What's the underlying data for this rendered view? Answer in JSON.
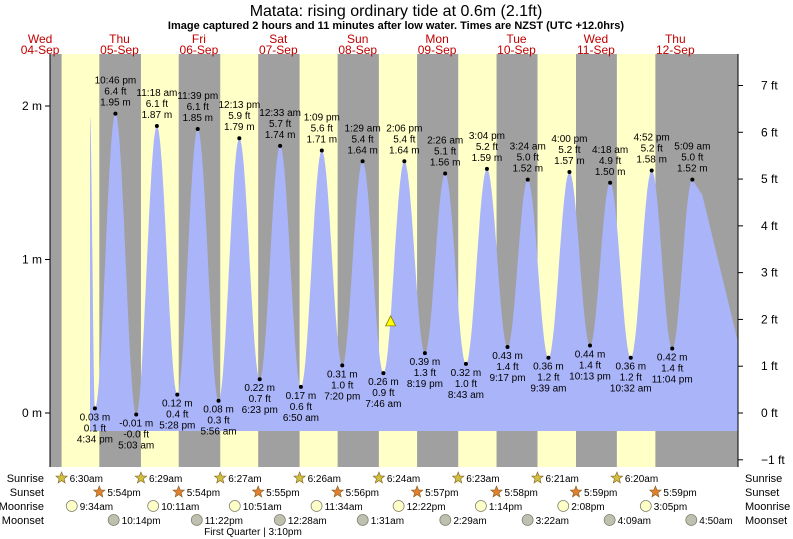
{
  "chart_data": {
    "type": "area",
    "title": "Matata: rising  ordinary tide at 0.6m (2.1ft)",
    "subtitle": "Image captured 2 hours and 11 minutes after low water. Times are NZST (UTC +12.0hrs)",
    "days": [
      {
        "dow": "Wed",
        "date": "04-Sep"
      },
      {
        "dow": "Thu",
        "date": "05-Sep"
      },
      {
        "dow": "Fri",
        "date": "06-Sep"
      },
      {
        "dow": "Sat",
        "date": "07-Sep"
      },
      {
        "dow": "Sun",
        "date": "08-Sep"
      },
      {
        "dow": "Mon",
        "date": "09-Sep"
      },
      {
        "dow": "Tue",
        "date": "10-Sep"
      },
      {
        "dow": "Wed",
        "date": "11-Sep"
      },
      {
        "dow": "Thu",
        "date": "12-Sep"
      }
    ],
    "left_axis": {
      "unit": "m",
      "ticks": [
        "0 m",
        "1 m",
        "2 m"
      ]
    },
    "right_axis": {
      "unit": "ft",
      "ticks": [
        "−1 ft",
        "0 ft",
        "1 ft",
        "2 ft",
        "3 ft",
        "4 ft",
        "5 ft",
        "6 ft",
        "7 ft"
      ]
    },
    "current": {
      "level_m": 0.6
    },
    "tides": [
      {
        "type": "low",
        "time": "4:34 pm",
        "m": "0.03 m",
        "ft": "0.1 ft"
      },
      {
        "type": "high",
        "time": "10:46 pm",
        "m": "1.95 m",
        "ft": "6.4 ft"
      },
      {
        "type": "low",
        "time": "5:03 am",
        "m": "-0.01 m",
        "ft": "-0.0 ft"
      },
      {
        "type": "high",
        "time": "11:18 am",
        "m": "1.87 m",
        "ft": "6.1 ft"
      },
      {
        "type": "low",
        "time": "5:28 pm",
        "m": "0.12 m",
        "ft": "0.4 ft"
      },
      {
        "type": "high",
        "time": "11:39 pm",
        "m": "1.85 m",
        "ft": "6.1 ft"
      },
      {
        "type": "low",
        "time": "5:56 am",
        "m": "0.08 m",
        "ft": "0.3 ft"
      },
      {
        "type": "high",
        "time": "12:13 pm",
        "m": "1.79 m",
        "ft": "5.9 ft"
      },
      {
        "type": "low",
        "time": "6:23 pm",
        "m": "0.22 m",
        "ft": "0.7 ft"
      },
      {
        "type": "high",
        "time": "12:33 am",
        "m": "1.74 m",
        "ft": "5.7 ft"
      },
      {
        "type": "low",
        "time": "6:50 am",
        "m": "0.17 m",
        "ft": "0.6 ft"
      },
      {
        "type": "high",
        "time": "1:09 pm",
        "m": "1.71 m",
        "ft": "5.6 ft"
      },
      {
        "type": "low",
        "time": "7:20 pm",
        "m": "0.31 m",
        "ft": "1.0 ft"
      },
      {
        "type": "high",
        "time": "1:29 am",
        "m": "1.64 m",
        "ft": "5.4 ft"
      },
      {
        "type": "low",
        "time": "7:46 am",
        "m": "0.26 m",
        "ft": "0.9 ft"
      },
      {
        "type": "high",
        "time": "2:06 pm",
        "m": "1.64 m",
        "ft": "5.4 ft"
      },
      {
        "type": "low",
        "time": "8:19 pm",
        "m": "0.39 m",
        "ft": "1.3 ft"
      },
      {
        "type": "high",
        "time": "2:26 am",
        "m": "1.56 m",
        "ft": "5.1 ft"
      },
      {
        "type": "low",
        "time": "8:43 am",
        "m": "0.32 m",
        "ft": "1.0 ft"
      },
      {
        "type": "high",
        "time": "3:04 pm",
        "m": "1.59 m",
        "ft": "5.2 ft"
      },
      {
        "type": "low",
        "time": "9:17 pm",
        "m": "0.43 m",
        "ft": "1.4 ft"
      },
      {
        "type": "high",
        "time": "3:24 am",
        "m": "1.52 m",
        "ft": "5.0 ft"
      },
      {
        "type": "low",
        "time": "9:39 am",
        "m": "0.36 m",
        "ft": "1.2 ft"
      },
      {
        "type": "high",
        "time": "4:00 pm",
        "m": "1.57 m",
        "ft": "5.2 ft"
      },
      {
        "type": "low",
        "time": "10:13 pm",
        "m": "0.44 m",
        "ft": "1.4 ft"
      },
      {
        "type": "high",
        "time": "4:18 am",
        "m": "1.50 m",
        "ft": "4.9 ft"
      },
      {
        "type": "low",
        "time": "10:32 am",
        "m": "0.36 m",
        "ft": "1.2 ft"
      },
      {
        "type": "high",
        "time": "4:52 pm",
        "m": "1.58 m",
        "ft": "5.2 ft"
      },
      {
        "type": "low",
        "time": "11:04 pm",
        "m": "0.42 m",
        "ft": "1.4 ft"
      },
      {
        "type": "high",
        "time": "5:09 am",
        "m": "1.52 m",
        "ft": "5.0 ft"
      }
    ],
    "rows": {
      "sunrise": {
        "label": "Sunrise",
        "times": [
          "6:30am",
          "6:29am",
          "6:27am",
          "6:26am",
          "6:24am",
          "6:23am",
          "6:21am",
          "6:20am"
        ]
      },
      "sunset": {
        "label": "Sunset",
        "times": [
          "5:54pm",
          "5:54pm",
          "5:55pm",
          "5:56pm",
          "5:57pm",
          "5:58pm",
          "5:59pm",
          "5:59pm"
        ]
      },
      "moonrise": {
        "label": "Moonrise",
        "times": [
          "9:34am",
          "10:11am",
          "10:51am",
          "11:34am",
          "12:22pm",
          "1:14pm",
          "2:08pm",
          "3:05pm"
        ]
      },
      "moonset": {
        "label": "Moonset",
        "times": [
          "10:14pm",
          "11:22pm",
          "12:28am",
          "1:31am",
          "2:29am",
          "3:22am",
          "4:09am",
          "4:50am"
        ]
      }
    },
    "moon_phase": "First Quarter | 3:10pm",
    "colors": {
      "water": "#aab4f8",
      "day": "#ffffc8",
      "night": "#a0a0a0",
      "day_label": "#c00000",
      "marker": "#ffff00"
    }
  }
}
